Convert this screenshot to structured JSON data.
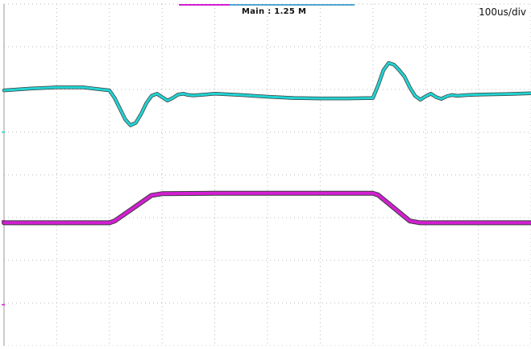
{
  "header": {
    "acquisition": "Main : 1.25 M",
    "timebase": "100us/div"
  },
  "colors": {
    "channel_1": "#22d3d3",
    "channel_2": "#d21fd2",
    "trace_shadow": "#1a1a1a",
    "grid": "#b9b9b9"
  },
  "chart_data": {
    "type": "line",
    "title": "",
    "xlabel": "",
    "ylabel": "",
    "grid": true,
    "x_divisions": 10,
    "y_divisions": 8,
    "xlim": [
      0,
      10
    ],
    "ylim": [
      -4,
      4
    ],
    "series": [
      {
        "color": "#22d3d3",
        "x": [
          0,
          0.5,
          1.0,
          1.5,
          2.0,
          2.1,
          2.2,
          2.3,
          2.4,
          2.5,
          2.6,
          2.7,
          2.8,
          2.9,
          3.0,
          3.1,
          3.2,
          3.3,
          3.4,
          3.5,
          3.6,
          3.8,
          4.0,
          4.5,
          5.0,
          5.5,
          6.0,
          6.5,
          7.0,
          7.1,
          7.2,
          7.3,
          7.4,
          7.5,
          7.6,
          7.7,
          7.8,
          7.9,
          8.0,
          8.1,
          8.2,
          8.3,
          8.4,
          8.5,
          8.6,
          8.8,
          9.0,
          9.5,
          10.0
        ],
        "y": [
          1.98,
          2.02,
          2.05,
          2.05,
          1.98,
          1.8,
          1.55,
          1.3,
          1.16,
          1.22,
          1.42,
          1.68,
          1.85,
          1.9,
          1.82,
          1.74,
          1.8,
          1.88,
          1.9,
          1.87,
          1.86,
          1.88,
          1.9,
          1.87,
          1.83,
          1.8,
          1.79,
          1.79,
          1.8,
          2.1,
          2.45,
          2.62,
          2.58,
          2.45,
          2.3,
          2.05,
          1.85,
          1.76,
          1.84,
          1.9,
          1.82,
          1.78,
          1.84,
          1.87,
          1.85,
          1.87,
          1.88,
          1.89,
          1.91
        ]
      },
      {
        "color": "#d21fd2",
        "x": [
          0,
          1.0,
          2.0,
          2.1,
          2.8,
          3.0,
          4.0,
          5.0,
          6.0,
          7.0,
          7.1,
          7.7,
          7.9,
          9.0,
          10.0
        ],
        "y": [
          -1.12,
          -1.12,
          -1.12,
          -1.08,
          -0.48,
          -0.44,
          -0.43,
          -0.43,
          -0.43,
          -0.43,
          -0.47,
          -1.08,
          -1.12,
          -1.12,
          -1.12
        ]
      }
    ]
  }
}
